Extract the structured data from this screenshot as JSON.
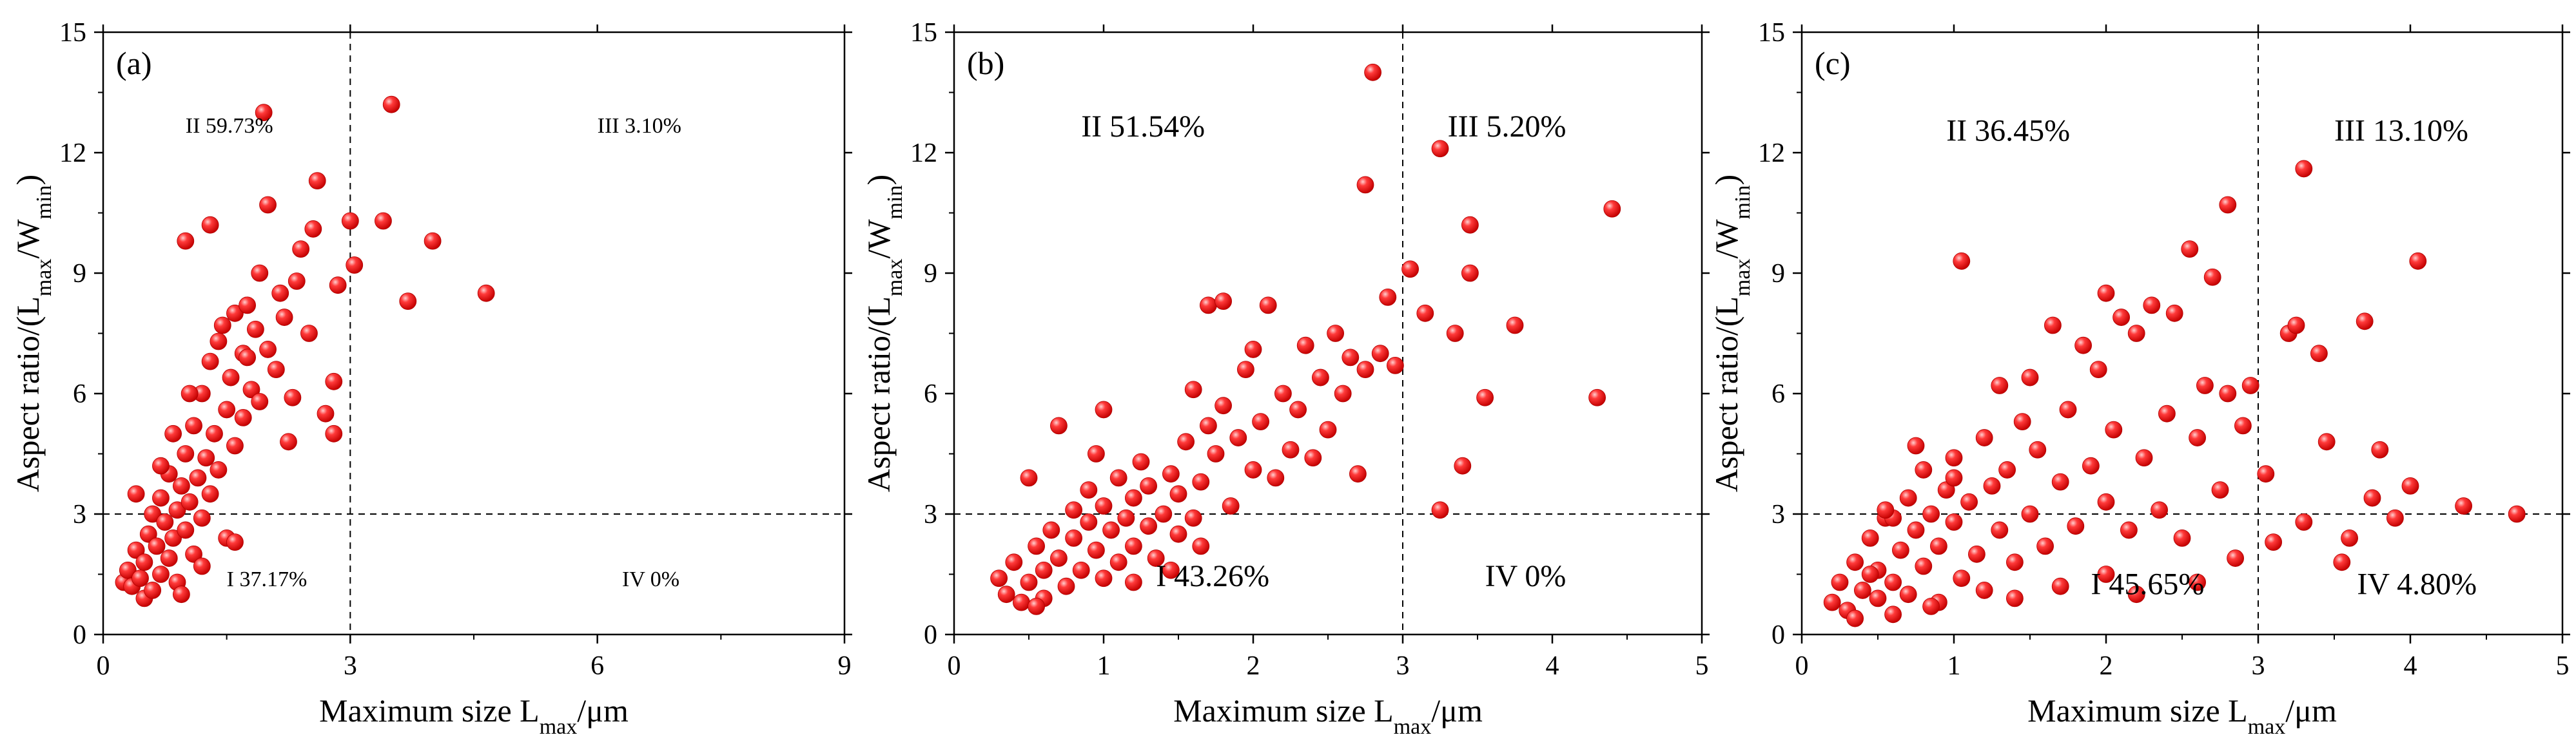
{
  "figure": {
    "colors": {
      "point": "#ee1111",
      "point_highlight": "#ffb0b0",
      "axis": "#000000",
      "dashed": "#000000"
    }
  },
  "chart_data": [
    {
      "type": "scatter",
      "panel_label": "(a)",
      "title": "",
      "xlabel": "Maximum size L_max/μm",
      "ylabel": "Aspect ratio/(L_max/W_min)",
      "xlim": [
        0,
        9
      ],
      "ylim": [
        0,
        15
      ],
      "xticks": [
        0,
        3,
        6,
        9
      ],
      "yticks": [
        0,
        3,
        6,
        9,
        12,
        15
      ],
      "x_threshold": 3,
      "y_threshold": 3,
      "quadrants": [
        {
          "id": "II",
          "text": "II 59.73%",
          "x": 1.0,
          "y": 12.5
        },
        {
          "id": "III",
          "text": "III 3.10%",
          "x": 6.0,
          "y": 12.5
        },
        {
          "id": "I",
          "text": "I 37.17%",
          "x": 1.5,
          "y": 1.2
        },
        {
          "id": "IV",
          "text": "IV 0%",
          "x": 6.3,
          "y": 1.2
        }
      ],
      "points": [
        [
          0.25,
          1.3
        ],
        [
          0.3,
          1.6
        ],
        [
          0.35,
          1.2
        ],
        [
          0.4,
          2.1
        ],
        [
          0.45,
          1.4
        ],
        [
          0.5,
          0.9
        ],
        [
          0.5,
          1.8
        ],
        [
          0.55,
          2.5
        ],
        [
          0.6,
          1.1
        ],
        [
          0.6,
          3.0
        ],
        [
          0.65,
          2.2
        ],
        [
          0.7,
          1.5
        ],
        [
          0.7,
          3.4
        ],
        [
          0.75,
          2.8
        ],
        [
          0.8,
          1.9
        ],
        [
          0.8,
          4.0
        ],
        [
          0.85,
          2.4
        ],
        [
          0.9,
          3.1
        ],
        [
          0.9,
          1.3
        ],
        [
          0.95,
          3.7
        ],
        [
          1.0,
          2.6
        ],
        [
          1.0,
          4.5
        ],
        [
          1.05,
          3.3
        ],
        [
          1.1,
          2.0
        ],
        [
          1.1,
          5.2
        ],
        [
          1.15,
          3.9
        ],
        [
          1.2,
          2.9
        ],
        [
          1.2,
          6.0
        ],
        [
          1.25,
          4.4
        ],
        [
          1.3,
          3.5
        ],
        [
          1.3,
          6.8
        ],
        [
          1.35,
          5.0
        ],
        [
          1.4,
          4.1
        ],
        [
          1.4,
          7.3
        ],
        [
          1.5,
          5.6
        ],
        [
          1.5,
          2.4
        ],
        [
          1.55,
          6.4
        ],
        [
          1.6,
          4.7
        ],
        [
          1.6,
          8.0
        ],
        [
          1.7,
          7.0
        ],
        [
          1.7,
          5.4
        ],
        [
          1.75,
          8.2
        ],
        [
          1.8,
          6.1
        ],
        [
          1.85,
          7.6
        ],
        [
          1.9,
          5.8
        ],
        [
          1.9,
          9.0
        ],
        [
          2.0,
          7.1
        ],
        [
          2.0,
          10.7
        ],
        [
          2.1,
          6.6
        ],
        [
          2.15,
          8.5
        ],
        [
          2.2,
          7.9
        ],
        [
          2.3,
          5.9
        ],
        [
          2.35,
          8.8
        ],
        [
          2.4,
          9.6
        ],
        [
          2.5,
          7.5
        ],
        [
          2.55,
          10.1
        ],
        [
          2.6,
          11.3
        ],
        [
          2.7,
          5.5
        ],
        [
          2.8,
          6.3
        ],
        [
          2.85,
          8.7
        ],
        [
          3.0,
          10.3
        ],
        [
          3.05,
          9.2
        ],
        [
          3.4,
          10.3
        ],
        [
          3.5,
          13.2
        ],
        [
          3.7,
          8.3
        ],
        [
          4.0,
          9.8
        ],
        [
          4.65,
          8.5
        ],
        [
          1.95,
          13.0
        ],
        [
          1.3,
          10.2
        ],
        [
          1.0,
          9.8
        ],
        [
          0.4,
          3.5
        ],
        [
          0.7,
          4.2
        ],
        [
          1.2,
          1.7
        ],
        [
          1.6,
          2.3
        ],
        [
          0.95,
          1.0
        ],
        [
          2.8,
          5.0
        ],
        [
          1.75,
          6.9
        ],
        [
          1.45,
          7.7
        ],
        [
          1.05,
          6.0
        ],
        [
          0.85,
          5.0
        ],
        [
          2.25,
          4.8
        ]
      ]
    },
    {
      "type": "scatter",
      "panel_label": "(b)",
      "title": "",
      "xlabel": "Maximum size L_max/μm",
      "ylabel": "Aspect ratio/(L_max/W_min)",
      "xlim": [
        0,
        5
      ],
      "ylim": [
        0,
        15
      ],
      "xticks": [
        0,
        1,
        2,
        3,
        4,
        5
      ],
      "yticks": [
        0,
        3,
        6,
        9,
        12,
        15
      ],
      "x_threshold": 3,
      "y_threshold": 3,
      "quadrants": [
        {
          "id": "II",
          "text": "II 51.54%",
          "x": 0.85,
          "y": 12.4
        },
        {
          "id": "III",
          "text": "III 5.20%",
          "x": 3.3,
          "y": 12.4
        },
        {
          "id": "I",
          "text": "I 43.26%",
          "x": 1.35,
          "y": 1.2
        },
        {
          "id": "IV",
          "text": "IV 0%",
          "x": 3.55,
          "y": 1.2
        }
      ],
      "points": [
        [
          0.3,
          1.4
        ],
        [
          0.35,
          1.0
        ],
        [
          0.4,
          1.8
        ],
        [
          0.45,
          0.8
        ],
        [
          0.5,
          1.3
        ],
        [
          0.55,
          2.2
        ],
        [
          0.6,
          1.6
        ],
        [
          0.6,
          0.9
        ],
        [
          0.65,
          2.6
        ],
        [
          0.7,
          1.9
        ],
        [
          0.75,
          1.2
        ],
        [
          0.8,
          2.4
        ],
        [
          0.8,
          3.1
        ],
        [
          0.85,
          1.6
        ],
        [
          0.9,
          2.8
        ],
        [
          0.9,
          3.6
        ],
        [
          0.95,
          2.1
        ],
        [
          1.0,
          1.4
        ],
        [
          1.0,
          3.2
        ],
        [
          1.05,
          2.6
        ],
        [
          1.1,
          3.9
        ],
        [
          1.1,
          1.8
        ],
        [
          1.15,
          2.9
        ],
        [
          1.2,
          3.4
        ],
        [
          1.2,
          2.2
        ],
        [
          1.25,
          4.3
        ],
        [
          1.3,
          2.7
        ],
        [
          1.3,
          3.7
        ],
        [
          1.35,
          1.9
        ],
        [
          1.4,
          3.0
        ],
        [
          1.45,
          4.0
        ],
        [
          1.5,
          2.5
        ],
        [
          1.5,
          3.5
        ],
        [
          1.55,
          4.8
        ],
        [
          1.6,
          2.9
        ],
        [
          1.6,
          6.1
        ],
        [
          1.65,
          3.8
        ],
        [
          1.7,
          5.2
        ],
        [
          1.7,
          8.2
        ],
        [
          1.75,
          4.5
        ],
        [
          1.8,
          5.7
        ],
        [
          1.8,
          8.3
        ],
        [
          1.85,
          3.2
        ],
        [
          1.9,
          4.9
        ],
        [
          1.95,
          6.6
        ],
        [
          2.0,
          4.1
        ],
        [
          2.0,
          7.1
        ],
        [
          2.05,
          5.3
        ],
        [
          2.1,
          8.2
        ],
        [
          2.15,
          3.9
        ],
        [
          2.2,
          6.0
        ],
        [
          2.25,
          4.6
        ],
        [
          2.3,
          5.6
        ],
        [
          2.35,
          7.2
        ],
        [
          2.4,
          4.4
        ],
        [
          2.45,
          6.4
        ],
        [
          2.5,
          5.1
        ],
        [
          2.55,
          7.5
        ],
        [
          2.6,
          6.0
        ],
        [
          2.65,
          6.9
        ],
        [
          2.7,
          4.0
        ],
        [
          2.75,
          6.6
        ],
        [
          2.75,
          11.2
        ],
        [
          2.8,
          14.0
        ],
        [
          2.85,
          7.0
        ],
        [
          2.9,
          8.4
        ],
        [
          2.95,
          6.7
        ],
        [
          3.05,
          9.1
        ],
        [
          3.15,
          8.0
        ],
        [
          3.25,
          12.1
        ],
        [
          3.25,
          3.1
        ],
        [
          3.35,
          7.5
        ],
        [
          3.4,
          4.2
        ],
        [
          3.45,
          10.2
        ],
        [
          3.45,
          9.0
        ],
        [
          3.55,
          5.9
        ],
        [
          3.75,
          7.7
        ],
        [
          4.3,
          5.9
        ],
        [
          4.4,
          10.6
        ],
        [
          0.5,
          3.9
        ],
        [
          0.7,
          5.2
        ],
        [
          1.0,
          5.6
        ],
        [
          0.55,
          0.7
        ],
        [
          1.2,
          1.3
        ],
        [
          0.95,
          4.5
        ],
        [
          1.45,
          1.6
        ],
        [
          1.65,
          2.2
        ]
      ]
    },
    {
      "type": "scatter",
      "panel_label": "(c)",
      "title": "",
      "xlabel": "Maximum size L_max/μm",
      "ylabel": "Aspect ratio/(L_max/W_min)",
      "xlim": [
        0,
        5
      ],
      "ylim": [
        0,
        15
      ],
      "xticks": [
        0,
        1,
        2,
        3,
        4,
        5
      ],
      "yticks": [
        0,
        3,
        6,
        9,
        12,
        15
      ],
      "x_threshold": 3,
      "y_threshold": 3,
      "quadrants": [
        {
          "id": "II",
          "text": "II 36.45%",
          "x": 0.95,
          "y": 12.3
        },
        {
          "id": "III",
          "text": "III 13.10%",
          "x": 3.5,
          "y": 12.3
        },
        {
          "id": "I",
          "text": "I 45.65%",
          "x": 1.9,
          "y": 1.0
        },
        {
          "id": "IV",
          "text": "IV 4.80%",
          "x": 3.65,
          "y": 1.0
        }
      ],
      "points": [
        [
          0.2,
          0.8
        ],
        [
          0.25,
          1.3
        ],
        [
          0.3,
          0.6
        ],
        [
          0.35,
          1.8
        ],
        [
          0.4,
          1.1
        ],
        [
          0.45,
          2.4
        ],
        [
          0.5,
          0.9
        ],
        [
          0.5,
          1.6
        ],
        [
          0.55,
          2.9
        ],
        [
          0.6,
          1.3
        ],
        [
          0.6,
          0.5
        ],
        [
          0.65,
          2.1
        ],
        [
          0.7,
          3.4
        ],
        [
          0.7,
          1.0
        ],
        [
          0.75,
          2.6
        ],
        [
          0.8,
          1.7
        ],
        [
          0.8,
          4.1
        ],
        [
          0.85,
          3.0
        ],
        [
          0.9,
          2.2
        ],
        [
          0.9,
          0.8
        ],
        [
          0.95,
          3.6
        ],
        [
          1.0,
          2.8
        ],
        [
          1.0,
          4.4
        ],
        [
          1.05,
          1.4
        ],
        [
          1.05,
          9.3
        ],
        [
          1.1,
          3.3
        ],
        [
          1.15,
          2.0
        ],
        [
          1.2,
          4.9
        ],
        [
          1.25,
          3.7
        ],
        [
          1.3,
          2.6
        ],
        [
          1.3,
          6.2
        ],
        [
          1.35,
          4.1
        ],
        [
          1.4,
          1.8
        ],
        [
          1.45,
          5.3
        ],
        [
          1.5,
          3.0
        ],
        [
          1.55,
          4.6
        ],
        [
          1.6,
          2.2
        ],
        [
          1.65,
          7.7
        ],
        [
          1.7,
          3.8
        ],
        [
          1.75,
          5.6
        ],
        [
          1.8,
          2.7
        ],
        [
          1.85,
          7.2
        ],
        [
          1.9,
          4.2
        ],
        [
          1.95,
          6.6
        ],
        [
          2.0,
          3.3
        ],
        [
          2.0,
          1.5
        ],
        [
          2.05,
          5.1
        ],
        [
          2.1,
          7.9
        ],
        [
          2.15,
          2.6
        ],
        [
          2.2,
          7.5
        ],
        [
          2.25,
          4.4
        ],
        [
          2.3,
          8.2
        ],
        [
          2.35,
          3.1
        ],
        [
          2.4,
          5.5
        ],
        [
          2.45,
          8.0
        ],
        [
          2.5,
          2.4
        ],
        [
          2.55,
          9.6
        ],
        [
          2.6,
          4.9
        ],
        [
          2.65,
          6.2
        ],
        [
          2.7,
          8.9
        ],
        [
          2.75,
          3.6
        ],
        [
          2.8,
          10.7
        ],
        [
          2.8,
          6.0
        ],
        [
          2.85,
          1.9
        ],
        [
          2.9,
          5.2
        ],
        [
          2.95,
          6.2
        ],
        [
          3.05,
          4.0
        ],
        [
          3.1,
          2.3
        ],
        [
          3.2,
          7.5
        ],
        [
          3.25,
          7.7
        ],
        [
          3.3,
          11.6
        ],
        [
          3.3,
          2.8
        ],
        [
          3.4,
          7.0
        ],
        [
          3.45,
          4.8
        ],
        [
          3.55,
          1.8
        ],
        [
          3.6,
          2.4
        ],
        [
          3.7,
          7.8
        ],
        [
          3.75,
          3.4
        ],
        [
          3.8,
          4.6
        ],
        [
          3.9,
          2.9
        ],
        [
          4.0,
          3.7
        ],
        [
          4.05,
          9.3
        ],
        [
          4.35,
          3.2
        ],
        [
          4.7,
          3.0
        ],
        [
          0.35,
          0.4
        ],
        [
          0.6,
          2.9
        ],
        [
          1.4,
          0.9
        ],
        [
          1.7,
          1.2
        ],
        [
          2.2,
          1.0
        ],
        [
          2.6,
          1.3
        ],
        [
          1.2,
          1.1
        ],
        [
          0.85,
          0.7
        ],
        [
          0.45,
          1.5
        ],
        [
          1.0,
          3.9
        ],
        [
          1.5,
          6.4
        ],
        [
          2.0,
          8.5
        ],
        [
          0.55,
          3.1
        ],
        [
          0.75,
          4.7
        ]
      ]
    }
  ]
}
